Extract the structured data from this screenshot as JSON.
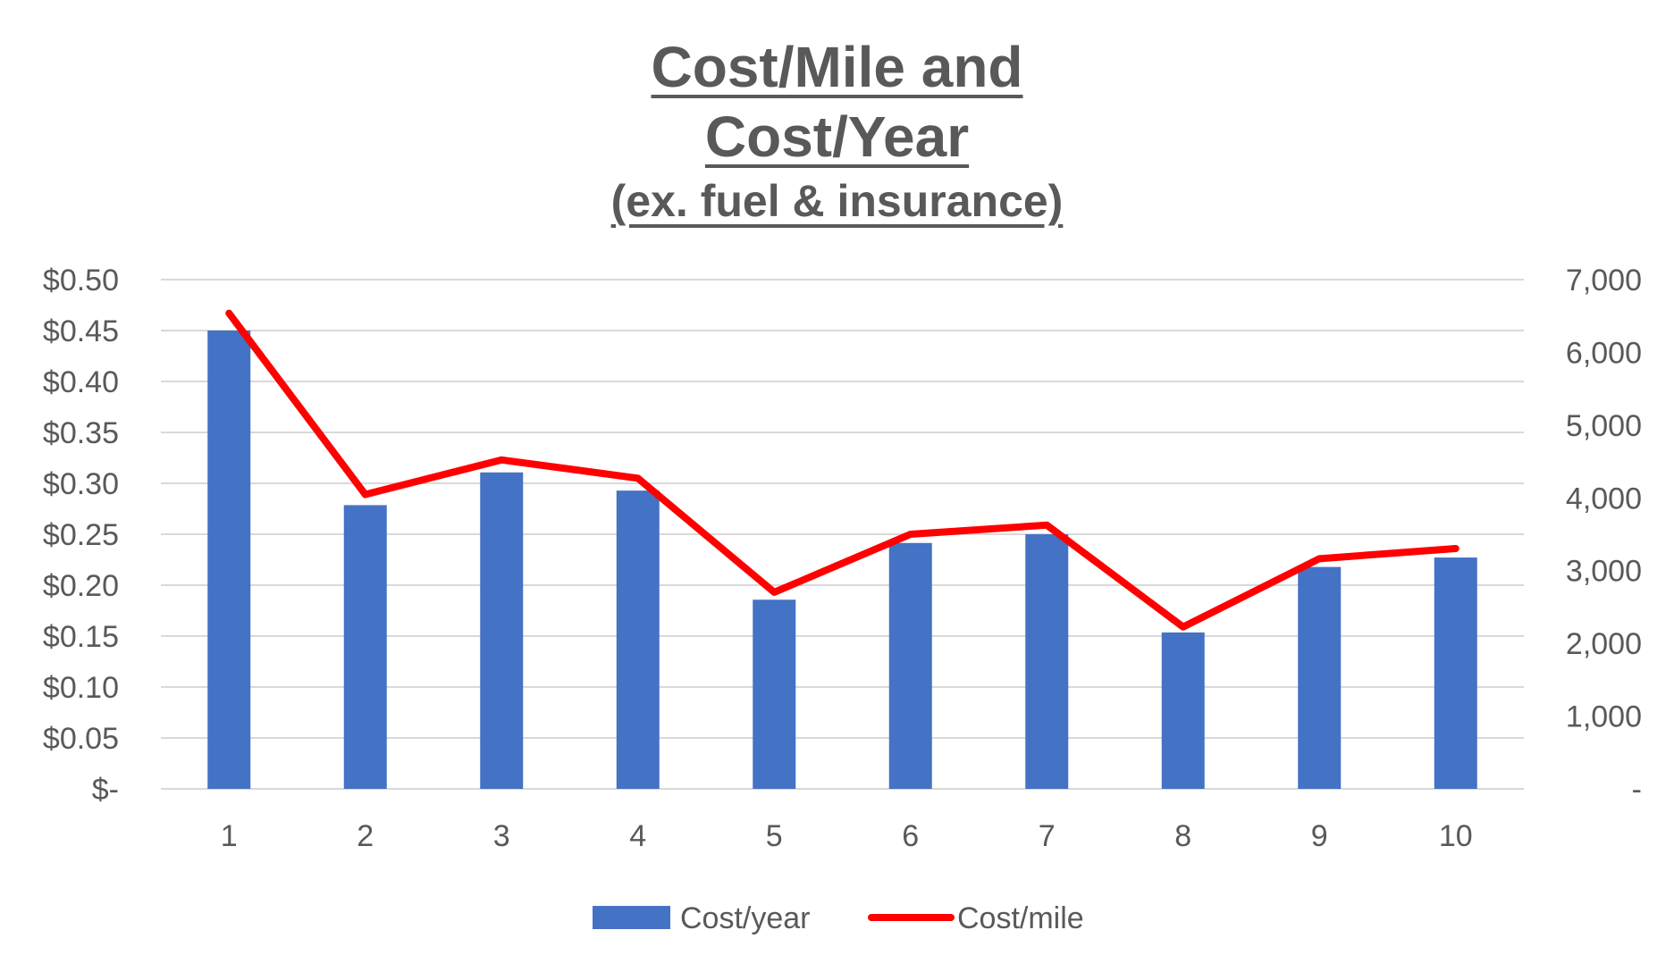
{
  "chart_data": {
    "type": "bar+line",
    "title_lines": [
      "Cost/Mile and",
      "Cost/Year",
      "(ex. fuel & insurance)"
    ],
    "categories": [
      "1",
      "2",
      "3",
      "4",
      "5",
      "6",
      "7",
      "8",
      "9",
      "10"
    ],
    "series": [
      {
        "name": "Cost/year",
        "type": "bar",
        "axis": "right",
        "values": [
          6300,
          3900,
          4350,
          4100,
          2600,
          3380,
          3500,
          2150,
          3050,
          3180
        ]
      },
      {
        "name": "Cost/mile",
        "type": "line",
        "axis": "left",
        "values": [
          0.467,
          0.289,
          0.323,
          0.305,
          0.193,
          0.25,
          0.259,
          0.159,
          0.226,
          0.236
        ]
      }
    ],
    "left_axis": {
      "min": 0,
      "max": 0.5,
      "ticks": [
        {
          "value": 0.0,
          "label": "$-"
        },
        {
          "value": 0.05,
          "label": "$0.05"
        },
        {
          "value": 0.1,
          "label": "$0.10"
        },
        {
          "value": 0.15,
          "label": "$0.15"
        },
        {
          "value": 0.2,
          "label": "$0.20"
        },
        {
          "value": 0.25,
          "label": "$0.25"
        },
        {
          "value": 0.3,
          "label": "$0.30"
        },
        {
          "value": 0.35,
          "label": "$0.35"
        },
        {
          "value": 0.4,
          "label": "$0.40"
        },
        {
          "value": 0.45,
          "label": "$0.45"
        },
        {
          "value": 0.5,
          "label": "$0.50"
        }
      ]
    },
    "right_axis": {
      "min": 0,
      "max": 7000,
      "ticks": [
        {
          "value": 0,
          "label": "-"
        },
        {
          "value": 1000,
          "label": "1,000"
        },
        {
          "value": 2000,
          "label": "2,000"
        },
        {
          "value": 3000,
          "label": "3,000"
        },
        {
          "value": 4000,
          "label": "4,000"
        },
        {
          "value": 5000,
          "label": "5,000"
        },
        {
          "value": 6000,
          "label": "6,000"
        },
        {
          "value": 7000,
          "label": "7,000"
        }
      ]
    },
    "gridlines": true,
    "legend": {
      "position": "bottom",
      "entries": [
        "Cost/year",
        "Cost/mile"
      ]
    },
    "colors": {
      "bar": "#4472C4",
      "line": "#FF0000",
      "grid": "#D9D9D9",
      "text": "#595959"
    }
  }
}
